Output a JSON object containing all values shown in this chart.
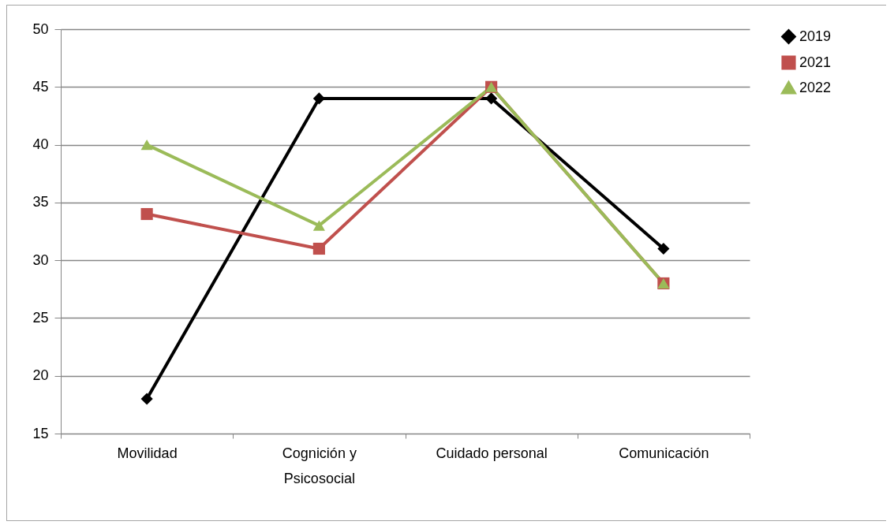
{
  "chart_data": {
    "type": "line",
    "categories": [
      "Movilidad",
      "Cognición y Psicosocial",
      "Cuidado personal",
      "Comunicación"
    ],
    "series": [
      {
        "name": "2019",
        "color": "#000000",
        "marker": "diamond",
        "values": [
          18,
          44,
          44,
          31
        ]
      },
      {
        "name": "2021",
        "color": "#c0504d",
        "marker": "square",
        "values": [
          34,
          31,
          45,
          28
        ]
      },
      {
        "name": "2022",
        "color": "#9bbb59",
        "marker": "triangle",
        "values": [
          40,
          33,
          45,
          28
        ]
      }
    ],
    "ylim": [
      15,
      50
    ],
    "yticks": [
      15,
      20,
      25,
      30,
      35,
      40,
      45,
      50
    ],
    "grid": "y",
    "legend": "right"
  }
}
